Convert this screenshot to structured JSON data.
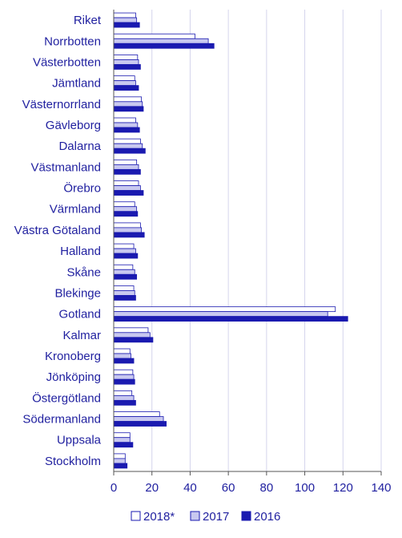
{
  "chart_data": {
    "type": "bar",
    "orientation": "horizontal",
    "categories": [
      "Riket",
      "Norrbotten",
      "Västerbotten",
      "Jämtland",
      "Västernorrland",
      "Gävleborg",
      "Dalarna",
      "Västmanland",
      "Örebro",
      "Värmland",
      "Västra Götaland",
      "Halland",
      "Skåne",
      "Blekinge",
      "Gotland",
      "Kalmar",
      "Kronoberg",
      "Jönköping",
      "Östergötland",
      "Södermanland",
      "Uppsala",
      "Stockholm"
    ],
    "series": [
      {
        "name": "2018*",
        "color": "#ffffff",
        "values": [
          11.5,
          42.5,
          12.5,
          11,
          14.5,
          11.5,
          14,
          12,
          13,
          11,
          14,
          10.5,
          10,
          10.5,
          116,
          18,
          8.5,
          10,
          9.5,
          24,
          8.5,
          6
        ]
      },
      {
        "name": "2017",
        "color": "#c8c8f0",
        "values": [
          12,
          49.5,
          13,
          11.5,
          15,
          12.5,
          15,
          13,
          14,
          12,
          14.5,
          11.5,
          11,
          11,
          112,
          19,
          9,
          10.5,
          10.5,
          26,
          8.5,
          6
        ]
      },
      {
        "name": "2016",
        "color": "#1a1ab0",
        "values": [
          13.5,
          52.5,
          14,
          13,
          15.5,
          13.5,
          16.5,
          14,
          15.5,
          12.5,
          16,
          12.5,
          12,
          11.5,
          122.5,
          20.5,
          10.5,
          11,
          11.5,
          27.5,
          10,
          7
        ]
      }
    ],
    "xlim": [
      0,
      140
    ],
    "xticks": [
      0,
      20,
      40,
      60,
      80,
      100,
      120,
      140
    ],
    "grid": true,
    "legend_position": "bottom",
    "title": "",
    "xlabel": "",
    "ylabel": ""
  }
}
